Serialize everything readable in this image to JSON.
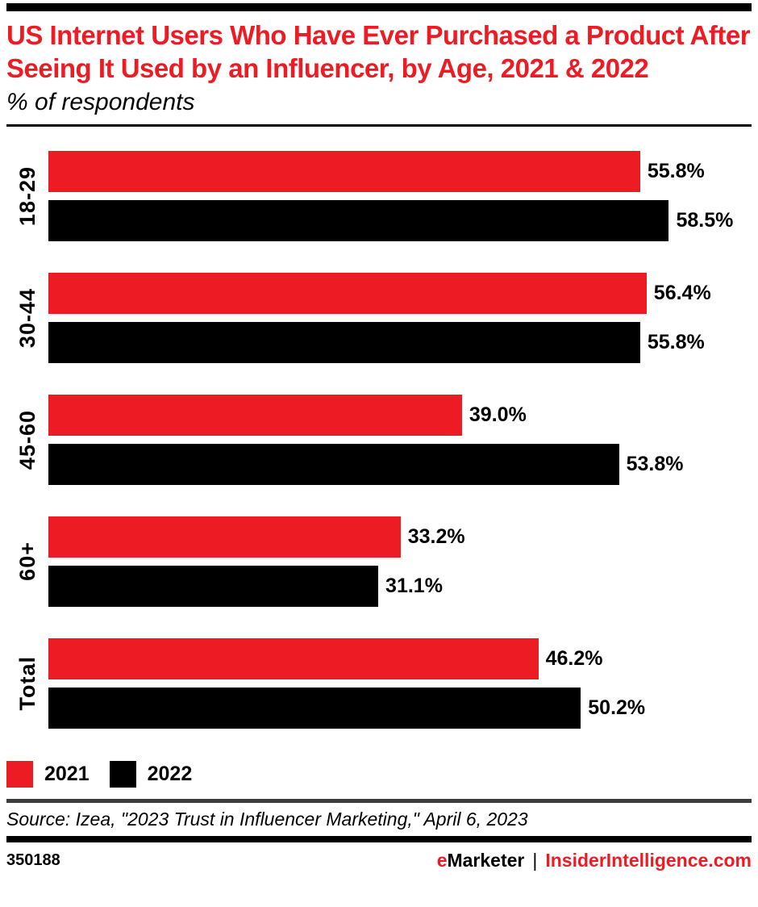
{
  "header": {
    "title": "US Internet Users Who Have Ever Purchased a Product After Seeing It Used by an Influencer, by Age, 2021 & 2022",
    "subtitle": "% of respondents"
  },
  "chart_data": {
    "type": "bar",
    "orientation": "horizontal",
    "title": "US Internet Users Who Have Ever Purchased a Product After Seeing It Used by an Influencer, by Age, 2021 & 2022",
    "subtitle": "% of respondents",
    "categories": [
      "18-29",
      "30-44",
      "45-60",
      "60+",
      "Total"
    ],
    "series": [
      {
        "name": "2021",
        "color": "#ed1c24",
        "values": [
          55.8,
          56.4,
          39.0,
          33.2,
          46.2
        ],
        "labels": [
          "55.8%",
          "56.4%",
          "39.0%",
          "33.2%",
          "46.2%"
        ]
      },
      {
        "name": "2022",
        "color": "#000000",
        "values": [
          58.5,
          55.8,
          53.8,
          31.1,
          50.2
        ],
        "labels": [
          "58.5%",
          "55.8%",
          "53.8%",
          "31.1%",
          "50.2%"
        ]
      }
    ],
    "xlim": [
      0,
      66.3
    ],
    "grid": false,
    "legend_position": "bottom",
    "value_label_position": "outside-end"
  },
  "legend": {
    "items": [
      {
        "label": "2021",
        "color": "#ed1c24"
      },
      {
        "label": "2022",
        "color": "#000000"
      }
    ]
  },
  "footer": {
    "source": "Source: Izea, \"2023 Trust in Influencer Marketing,\" April 6, 2023",
    "chart_id": "350188",
    "brand_e": "e",
    "brand_rest": "Marketer",
    "separator": "|",
    "site": "InsiderIntelligence.com"
  },
  "colors": {
    "accent_red": "#ed1c24",
    "bar_black": "#000000",
    "rule_gray": "#3d3d3d"
  }
}
